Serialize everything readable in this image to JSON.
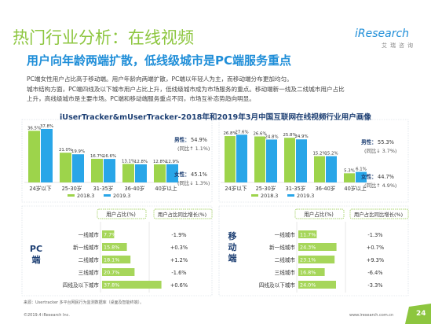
{
  "header": {
    "title": "热门行业分析：在线视频",
    "subtitle": "用户向年龄两端扩散，低线级城市是PC端服务重点",
    "logo": "iResearch",
    "logo_sub": "艾瑞咨询"
  },
  "intro": [
    "PC端女性用户占比高于移动端。用户年龄向两端扩散，PC端以年轻人为主，而移动端分布更加均匀。",
    "城市结构方面，PC端四线及以下城市用户占比上升，低线级城市成为市场服务的重点。移动端新一线及二线城市用户占比",
    "上升，高线级城市是主要市场。PC端和移动端服务重点不同，市场互补态势趋向明显。"
  ],
  "footer": {
    "source": "来源：Usertracker 多平台网民行为监测数据库（桌面及智能终端）。",
    "copyright": "©2019.4 iResearch Inc.",
    "website": "www.iresearch.com.cn",
    "page": "24"
  },
  "colors": {
    "accent_green": "#8dc63f",
    "accent_blue": "#1f8ed8",
    "series_2018": "#9dd44b",
    "series_2019": "#29a6e8",
    "bar_pc": "#a6d65a",
    "bar_mobile": "#a6d65a",
    "page_badge": "#8dc63f"
  },
  "chart_data": {
    "title": "iUserTracker&mUserTracker-2018年和2019年3月中国互联网在线视频行业用户画像",
    "legend": [
      "2018.3",
      "2019.3"
    ],
    "age_charts": [
      {
        "panel": "PC",
        "type": "bar",
        "categories": [
          "24岁以下",
          "25-30岁",
          "31-35岁",
          "36-40岁",
          "40岁以上"
        ],
        "series": [
          {
            "name": "2018.3",
            "values": [
              36.5,
              21.0,
              16.7,
              13.1,
              12.8
            ],
            "labels": [
              "36.5%",
              "21.0%",
              "16.7%",
              "13.1%",
              "12.8%"
            ]
          },
          {
            "name": "2019.3",
            "values": [
              37.8,
              19.9,
              16.6,
              12.8,
              12.9
            ],
            "labels": [
              "37.8%",
              "19.9%",
              "16.6%",
              "12.8%",
              "12.9%"
            ]
          }
        ],
        "gender": {
          "male_label": "男性：",
          "male_value": "54.9%",
          "male_change": "(同比↑ 1.1%)",
          "female_label": "女性：",
          "female_value": "45.1%",
          "female_change": "(同比↓ 1.3%)"
        }
      },
      {
        "panel": "Mobile",
        "type": "bar",
        "categories": [
          "24岁以下",
          "25-30岁",
          "31-35岁",
          "36-40岁",
          "40岁以上"
        ],
        "series": [
          {
            "name": "2018.3",
            "values": [
              26.8,
              26.6,
              25.8,
              15.2,
              5.3
            ],
            "labels": [
              "26.8%",
              "26.6%",
              "25.8%",
              "15.2%",
              "5.3%"
            ]
          },
          {
            "name": "2019.3",
            "values": [
              27.6,
              24.8,
              24.9,
              15.2,
              6.1
            ],
            "labels": [
              "27.6%",
              "24.8%",
              "24.9%",
              "15.2%",
              "6.1%"
            ]
          }
        ],
        "gender": {
          "male_label": "男性：",
          "male_value": "55.3%",
          "male_change": "(同比↓ 3.7%)",
          "female_label": "女性：",
          "female_value": "44.7%",
          "female_change": "(同比↑ 4.9%)"
        }
      }
    ],
    "city_tables": [
      {
        "panel_label": "PC端",
        "header_share": "用户占比(%)",
        "header_change": "用户占比同比增长(%)",
        "rows": [
          {
            "city": "一线城市",
            "share": 7.7,
            "share_label": "7.7%",
            "change": "-1.9%"
          },
          {
            "city": "新一线城市",
            "share": 15.8,
            "share_label": "15.8%",
            "change": "+0.3%"
          },
          {
            "city": "二线城市",
            "share": 18.1,
            "share_label": "18.1%",
            "change": "+1.2%"
          },
          {
            "city": "三线城市",
            "share": 20.7,
            "share_label": "20.7%",
            "change": "-1.6%"
          },
          {
            "city": "四线及以下城市",
            "share": 37.8,
            "share_label": "37.8%",
            "change": "+0.6%"
          }
        ]
      },
      {
        "panel_label": "移动端",
        "header_share": "用户占比(%)",
        "header_change": "用户占比同比增长(%)",
        "rows": [
          {
            "city": "一线城市",
            "share": 11.7,
            "share_label": "11.7%",
            "change": "-1.3%"
          },
          {
            "city": "新一线城市",
            "share": 24.3,
            "share_label": "24.3%",
            "change": "+0.7%"
          },
          {
            "city": "二线城市",
            "share": 23.1,
            "share_label": "23.1%",
            "change": "+9.3%"
          },
          {
            "city": "三线城市",
            "share": 16.8,
            "share_label": "16.8%",
            "change": "-6.4%"
          },
          {
            "city": "四线及以下城市",
            "share": 24.0,
            "share_label": "24.0%",
            "change": "-3.3%"
          }
        ]
      }
    ]
  }
}
